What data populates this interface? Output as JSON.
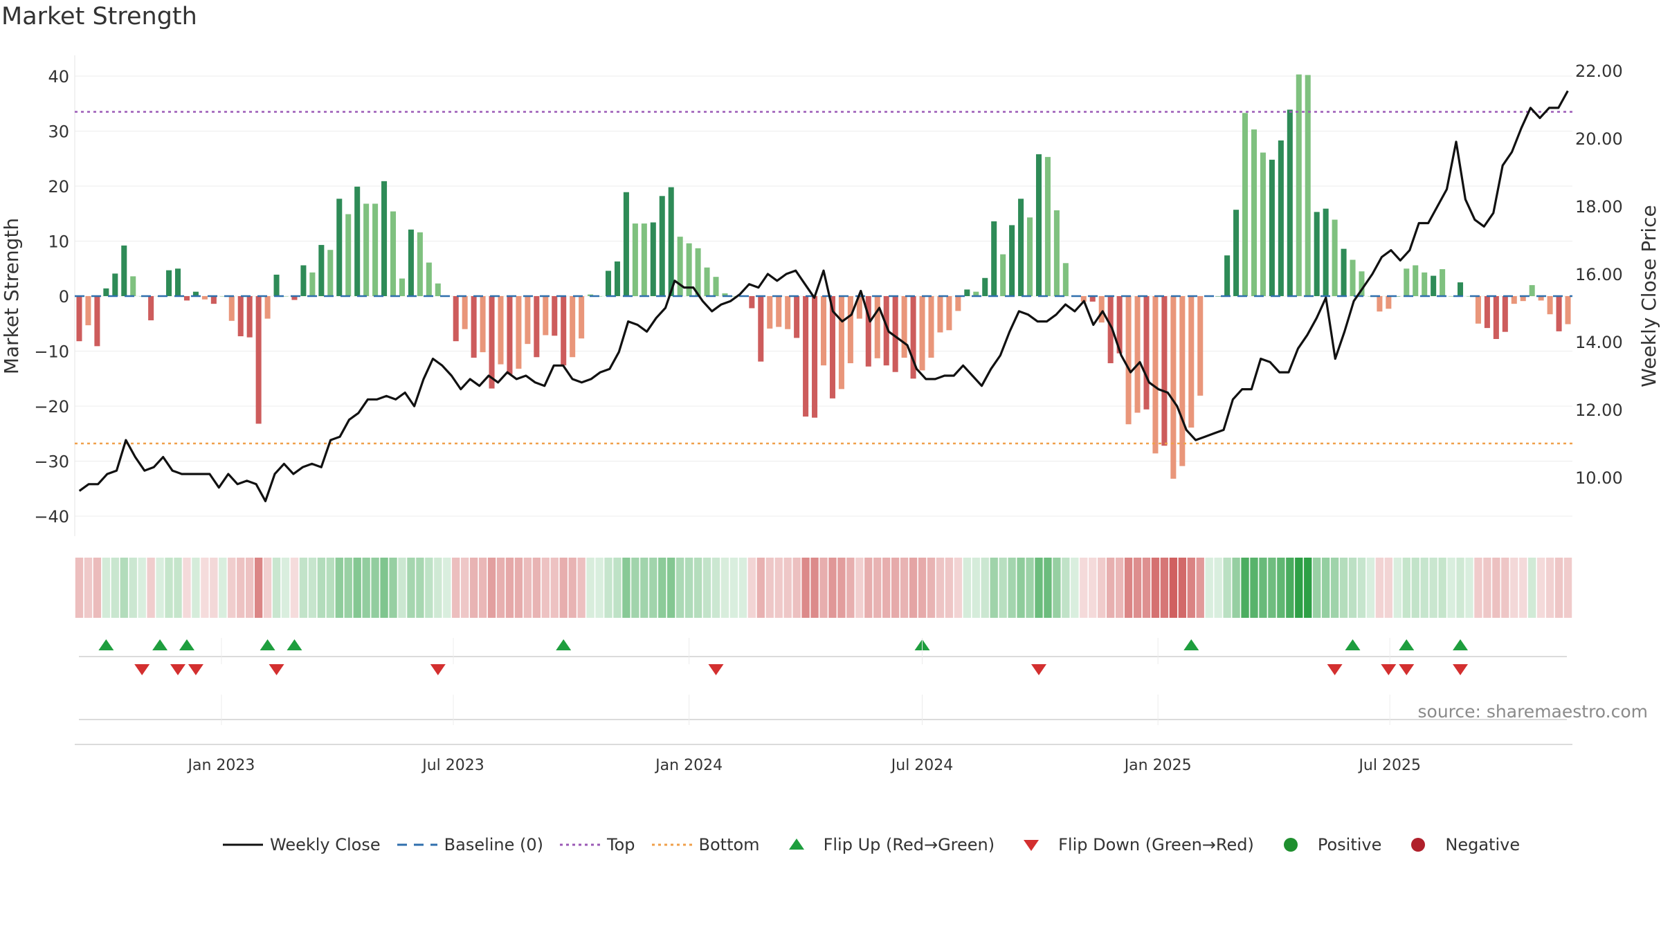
{
  "title": "Market Strength",
  "source": "source: sharemaestro.com",
  "colors": {
    "pos_dark": "#2e8b57",
    "pos_light": "#7fc17f",
    "neg_dark": "#cd5c5c",
    "neg_light": "#e9967a",
    "price_line": "#111111",
    "baseline": "#2f6fad",
    "top_line": "#9b59b6",
    "bottom_line": "#f0a04b",
    "flip_up": "#1e9e3e",
    "flip_down": "#d32f2f",
    "positive": "#1f8f2f",
    "negative": "#b0202b"
  },
  "legend": [
    {
      "key": "weekly_close",
      "label": "Weekly Close",
      "symbol": "line-solid"
    },
    {
      "key": "baseline",
      "label": "Baseline (0)",
      "symbol": "line-dash"
    },
    {
      "key": "top",
      "label": "Top",
      "symbol": "line-dot-purple"
    },
    {
      "key": "bottom",
      "label": "Bottom",
      "symbol": "line-dot-orange"
    },
    {
      "key": "flip_up",
      "label": "Flip Up (Red→Green)",
      "symbol": "triangle-up"
    },
    {
      "key": "flip_down",
      "label": "Flip Down (Green→Red)",
      "symbol": "triangle-down"
    },
    {
      "key": "positive",
      "label": "Positive",
      "symbol": "dot-green"
    },
    {
      "key": "negative",
      "label": "Negative",
      "symbol": "dot-red"
    }
  ],
  "chart_data": {
    "type": "bar",
    "ylabel": "Market Strength",
    "y2label": "Weekly Close Price",
    "ylim": [
      -43,
      42.5
    ],
    "y2lim": [
      8.75,
      22.4
    ],
    "yticks": [
      40,
      30,
      20,
      10,
      0,
      -10,
      -20,
      -30,
      -40
    ],
    "ytick_labels": [
      "40",
      "30",
      "20",
      "10",
      "0",
      "−10",
      "−20",
      "−30",
      "−40"
    ],
    "y2ticks": [
      22,
      20,
      18,
      16,
      14,
      12,
      10
    ],
    "y2tick_labels": [
      "22.00",
      "20.00",
      "18.00",
      "16.00",
      "14.00",
      "12.00",
      "10.00"
    ],
    "x_start": "2022-09-12",
    "week_days": 7,
    "xticks": [
      {
        "date": "2023-01-01",
        "label": "Jan 2023"
      },
      {
        "date": "2023-07-01",
        "label": "Jul 2023"
      },
      {
        "date": "2024-01-01",
        "label": "Jan 2024"
      },
      {
        "date": "2024-07-01",
        "label": "Jul 2024"
      },
      {
        "date": "2025-01-01",
        "label": "Jan 2025"
      },
      {
        "date": "2025-07-01",
        "label": "Jul 2025"
      }
    ],
    "top": 33.5,
    "bottom": -26.8,
    "baseline": 0,
    "series": [
      {
        "name": "Market Strength",
        "values": [
          -8.2,
          -5.3,
          -9.1,
          1.4,
          4.1,
          9.2,
          3.6,
          0,
          -4.4,
          0,
          4.7,
          5.0,
          -0.8,
          0.8,
          -0.6,
          -1.4,
          0,
          -4.5,
          -7.3,
          -7.5,
          -23.2,
          -4.1,
          3.9,
          0,
          -0.7,
          5.6,
          4.3,
          9.3,
          8.4,
          17.7,
          14.9,
          19.9,
          16.8,
          16.8,
          20.9,
          15.4,
          3.2,
          12.1,
          11.6,
          6.1,
          2.3,
          0,
          -8.2,
          -6.0,
          -11.2,
          -10.2,
          -16.8,
          -12.4,
          -14.2,
          -13.2,
          -8.7,
          -11.1,
          -7.1,
          -7.2,
          -12.6,
          -11.1,
          -7.7,
          0.3,
          0,
          4.6,
          6.3,
          18.9,
          13.2,
          13.2,
          13.4,
          18.2,
          19.8,
          10.8,
          9.6,
          8.7,
          5.2,
          3.5,
          0.5,
          0,
          0,
          -2.2,
          -11.9,
          -5.9,
          -5.6,
          -6.0,
          -7.6,
          -21.9,
          -22.1,
          -12.6,
          -18.6,
          -16.9,
          -12.2,
          -4.1,
          -12.8,
          -11.3,
          -12.6,
          -13.8,
          -11.2,
          -15.0,
          -13.5,
          -11.2,
          -6.6,
          -6.2,
          -2.7,
          1.2,
          0.8,
          3.3,
          13.6,
          7.6,
          12.9,
          17.7,
          14.3,
          25.8,
          25.3,
          15.6,
          6.0,
          0,
          -1.0,
          -1.0,
          -4.8,
          -12.2,
          -10.4,
          -23.3,
          -21.2,
          -20.6,
          -28.6,
          -27.2,
          -33.2,
          -30.9,
          -23.9,
          -18.1,
          0,
          0,
          7.4,
          15.7,
          33.3,
          30.3,
          26.1,
          24.8,
          28.3,
          33.9,
          40.3,
          40.2,
          15.3,
          15.9,
          13.9,
          8.6,
          6.6,
          4.5,
          0,
          -2.8,
          -2.3,
          0,
          5.0,
          5.6,
          4.3,
          3.7,
          4.9,
          0,
          2.5,
          0,
          -5.0,
          -5.8,
          -7.8,
          -6.5,
          -1.4,
          -0.9,
          2.0,
          -0.8,
          -3.3,
          -6.4,
          -5.1
        ],
        "shade": [
          "dark",
          "light",
          "dark",
          "dark",
          "dark",
          "dark",
          "light",
          "light",
          "dark",
          "light",
          "dark",
          "dark",
          "dark",
          "dark",
          "light",
          "dark",
          "light",
          "light",
          "dark",
          "dark",
          "dark",
          "light",
          "dark",
          "light",
          "dark",
          "dark",
          "light",
          "dark",
          "light",
          "dark",
          "light",
          "dark",
          "light",
          "light",
          "dark",
          "light",
          "light",
          "dark",
          "light",
          "light",
          "light",
          "light",
          "dark",
          "light",
          "dark",
          "light",
          "dark",
          "light",
          "dark",
          "light",
          "light",
          "dark",
          "light",
          "dark",
          "dark",
          "light",
          "light",
          "light",
          "light",
          "dark",
          "dark",
          "dark",
          "light",
          "light",
          "dark",
          "dark",
          "dark",
          "light",
          "light",
          "light",
          "light",
          "light",
          "light",
          "light",
          "light",
          "dark",
          "dark",
          "light",
          "light",
          "light",
          "dark",
          "dark",
          "dark",
          "light",
          "dark",
          "light",
          "light",
          "light",
          "dark",
          "light",
          "dark",
          "dark",
          "light",
          "dark",
          "light",
          "light",
          "light",
          "light",
          "light",
          "dark",
          "light",
          "dark",
          "dark",
          "light",
          "dark",
          "dark",
          "light",
          "dark",
          "light",
          "light",
          "light",
          "light",
          "light",
          "dark",
          "light",
          "dark",
          "dark",
          "light",
          "light",
          "dark",
          "light",
          "dark",
          "light",
          "light",
          "light",
          "light",
          "light",
          "dark",
          "dark",
          "dark",
          "light",
          "light",
          "light",
          "dark",
          "dark",
          "dark",
          "light",
          "light",
          "dark",
          "dark",
          "light",
          "dark",
          "light",
          "light",
          "light",
          "light",
          "light",
          "dark",
          "light",
          "light",
          "light",
          "dark",
          "light",
          "light",
          "dark",
          "light",
          "light",
          "dark",
          "dark",
          "dark",
          "light",
          "light",
          "light",
          "light",
          "light",
          "dark",
          "light",
          "light"
        ]
      },
      {
        "name": "Weekly Close",
        "axis": "right",
        "values": [
          9.6,
          9.8,
          9.8,
          10.1,
          10.2,
          11.1,
          10.6,
          10.2,
          10.3,
          10.6,
          10.2,
          10.1,
          10.1,
          10.1,
          10.1,
          9.7,
          10.1,
          9.8,
          9.9,
          9.8,
          9.3,
          10.1,
          10.4,
          10.1,
          10.3,
          10.4,
          10.3,
          11.1,
          11.2,
          11.7,
          11.9,
          12.3,
          12.3,
          12.4,
          12.3,
          12.5,
          12.1,
          12.9,
          13.5,
          13.3,
          13.0,
          12.6,
          12.9,
          12.7,
          13.0,
          12.8,
          13.1,
          12.9,
          13.0,
          12.8,
          12.7,
          13.3,
          13.3,
          12.9,
          12.8,
          12.9,
          13.1,
          13.2,
          13.7,
          14.6,
          14.5,
          14.3,
          14.7,
          15.0,
          15.8,
          15.6,
          15.6,
          15.2,
          14.9,
          15.1,
          15.2,
          15.4,
          15.7,
          15.6,
          16.0,
          15.8,
          16.0,
          16.1,
          15.7,
          15.3,
          16.1,
          14.9,
          14.6,
          14.8,
          15.5,
          14.6,
          15.0,
          14.3,
          14.1,
          13.9,
          13.2,
          12.9,
          12.9,
          13.0,
          13.0,
          13.3,
          13.0,
          12.7,
          13.2,
          13.6,
          14.3,
          14.9,
          14.8,
          14.6,
          14.6,
          14.8,
          15.1,
          14.9,
          15.2,
          14.5,
          14.9,
          14.4,
          13.6,
          13.1,
          13.4,
          12.8,
          12.6,
          12.5,
          12.1,
          11.4,
          11.1,
          11.2,
          11.3,
          11.4,
          12.3,
          12.6,
          12.6,
          13.5,
          13.4,
          13.1,
          13.1,
          13.8,
          14.2,
          14.7,
          15.3,
          13.5,
          14.3,
          15.2,
          15.6,
          16.0,
          16.5,
          16.7,
          16.4,
          16.7,
          17.5,
          17.5,
          18.0,
          18.5,
          19.9,
          18.2,
          17.6,
          17.4,
          17.8,
          19.2,
          19.6,
          20.3,
          20.9,
          20.6,
          20.9,
          20.9,
          21.4
        ],
        "note": "values listed in reading order left to right; the drawing script distributes them across the same week axis"
      }
    ],
    "strength_strip": {
      "description": "heat strip of strength per week",
      "levels": "same as Market Strength values"
    },
    "flip_up_weeks": [
      3,
      9,
      12,
      21,
      24,
      54,
      94,
      124,
      142,
      148,
      154
    ],
    "flip_down_weeks": [
      7,
      11,
      13,
      22,
      40,
      71,
      107,
      140,
      146,
      148,
      154
    ]
  }
}
